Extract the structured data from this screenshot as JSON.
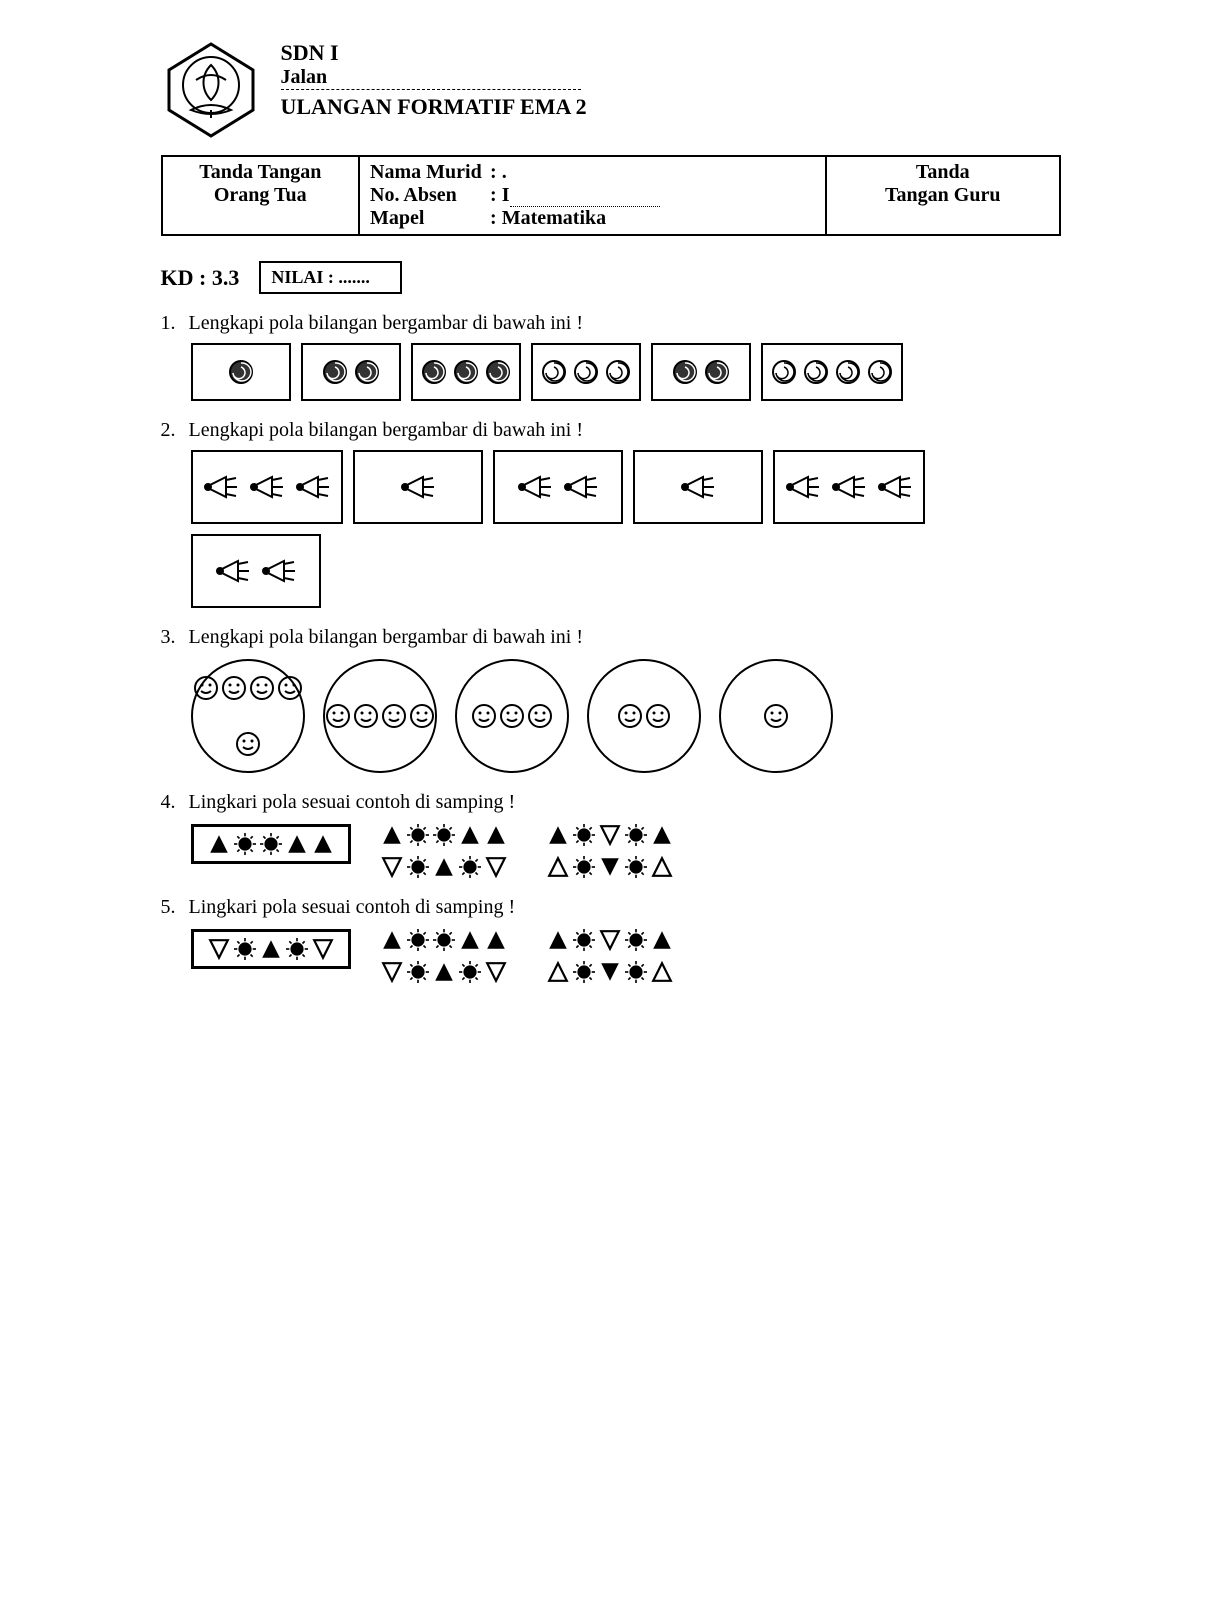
{
  "header": {
    "school": "SDN I",
    "street_label": "Jalan",
    "title": "ULANGAN FORMATIF EMA 2"
  },
  "info_table": {
    "left_line1": "Tanda Tangan",
    "left_line2": "Orang Tua",
    "mid_label1": "Nama Murid",
    "mid_val1": ": .",
    "mid_label2": "No. Absen",
    "mid_val2": ": I",
    "mid_label3": "Mapel",
    "mid_val3": ": Matematika",
    "right_line1": "Tanda",
    "right_line2": "Tangan Guru"
  },
  "kd": {
    "label": "KD : 3.3",
    "nilai": "NILAI : ......."
  },
  "q1": {
    "num": "1.",
    "text": "Lengkapi pola bilangan bergambar di bawah ini !",
    "boxes": [
      {
        "count": 1,
        "type": "spiral-dark"
      },
      {
        "count": 2,
        "type": "spiral-dark"
      },
      {
        "count": 3,
        "type": "spiral-dark"
      },
      {
        "count": 3,
        "type": "spiral-outline"
      },
      {
        "count": 2,
        "type": "spiral-dark"
      },
      {
        "count": 4,
        "type": "spiral-outline"
      }
    ]
  },
  "q2": {
    "num": "2.",
    "text": "Lengkapi pola bilangan bergambar di bawah ini !",
    "boxes": [
      {
        "count": 3,
        "type": "shuttle"
      },
      {
        "count": 1,
        "type": "shuttle"
      },
      {
        "count": 2,
        "type": "shuttle"
      },
      {
        "count": 1,
        "type": "shuttle-sketch"
      },
      {
        "count": 3,
        "type": "shuttle-sketch"
      },
      {
        "count": 2,
        "type": "shuttle-sketch"
      }
    ]
  },
  "q3": {
    "num": "3.",
    "text": "Lengkapi pola bilangan bergambar di bawah ini !",
    "circles": [
      5,
      4,
      3,
      2,
      1
    ]
  },
  "q4": {
    "num": "4.",
    "text": "Lingkari pola sesuai contoh di samping !",
    "example": [
      "tri-f",
      "sun-f",
      "sun-f",
      "tri-f",
      "tri-f"
    ],
    "options": [
      [
        "tri-f",
        "sun-f",
        "sun-f",
        "tri-f",
        "tri-f"
      ],
      [
        "tri-f",
        "sun-f",
        "tri-o-down",
        "sun-f",
        "tri-f"
      ],
      [
        "tri-o-down",
        "sun-f",
        "tri-f",
        "sun-f",
        "tri-o-down"
      ],
      [
        "tri-o",
        "sun-f",
        "tri-f-down",
        "sun-f",
        "tri-o"
      ]
    ]
  },
  "q5": {
    "num": "5.",
    "text": "Lingkari pola sesuai contoh di samping !",
    "example": [
      "tri-o-down",
      "sun-f",
      "tri-f",
      "sun-f",
      "tri-o-down"
    ],
    "options": [
      [
        "tri-f",
        "sun-f",
        "sun-f",
        "tri-f",
        "tri-f"
      ],
      [
        "tri-f",
        "sun-f",
        "tri-o-down",
        "sun-f",
        "tri-f"
      ],
      [
        "tri-o-down",
        "sun-f",
        "tri-f",
        "sun-f",
        "tri-o-down"
      ],
      [
        "tri-o",
        "sun-f",
        "tri-f-down",
        "sun-f",
        "tri-o"
      ]
    ]
  },
  "colors": {
    "ink": "#000000",
    "bg": "#ffffff"
  }
}
